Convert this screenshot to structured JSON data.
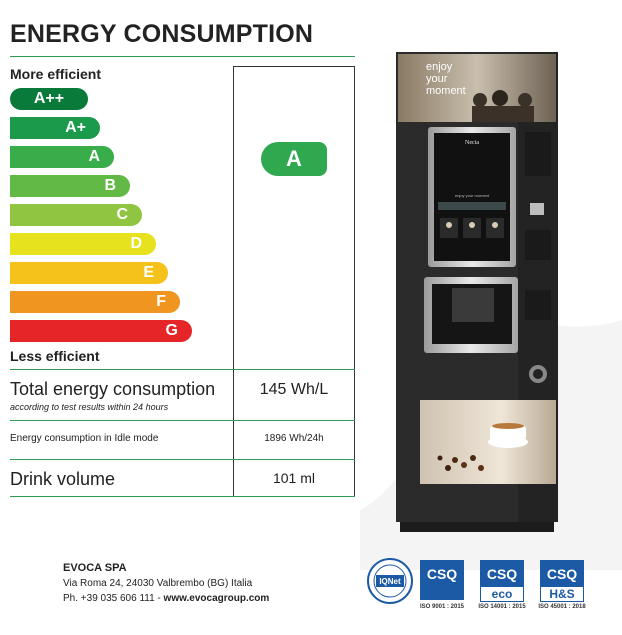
{
  "title": "ENERGY CONSUMPTION",
  "more_efficient": "More efficient",
  "less_efficient": "Less efficient",
  "classes": [
    {
      "label": "A++",
      "color": "#0a7a3a"
    },
    {
      "label": "A+",
      "color": "#1a9a4a"
    },
    {
      "label": "A",
      "color": "#38ad4a"
    },
    {
      "label": "B",
      "color": "#62b945"
    },
    {
      "label": "C",
      "color": "#8fc540"
    },
    {
      "label": "D",
      "color": "#e6e21e"
    },
    {
      "label": "E",
      "color": "#f4c21b"
    },
    {
      "label": "F",
      "color": "#f0951f"
    },
    {
      "label": "G",
      "color": "#e52528"
    }
  ],
  "rating": {
    "label": "A",
    "color": "#2fa84f"
  },
  "rows": {
    "total_label": "Total energy consumption",
    "total_note": "according to test results within 24 hours",
    "total_value": "145 Wh/L",
    "idle_label": "Energy consumption in Idle mode",
    "idle_value": "1896 Wh/24h",
    "drink_label": "Drink volume",
    "drink_value": "101 ml"
  },
  "machine": {
    "banner_text": [
      "enjoy",
      "your",
      "moment"
    ],
    "brand": "Necta",
    "screen_text": "enjoy your moment"
  },
  "company": {
    "name": "EVOCA SPA",
    "address": "Via Roma 24, 24030 Valbrembo (BG) Italia",
    "phone": "Ph.  +39 035 606 111 - ",
    "website": "www.evocagroup.com"
  },
  "certifications": {
    "iqnet": "IQNet",
    "csq": "CSQ",
    "eco": "eco",
    "hs": "H&S",
    "iso1": "ISO 9001 : 2015",
    "iso2": "ISO 14001 : 2015",
    "iso3": "ISO 45001 : 2018"
  }
}
